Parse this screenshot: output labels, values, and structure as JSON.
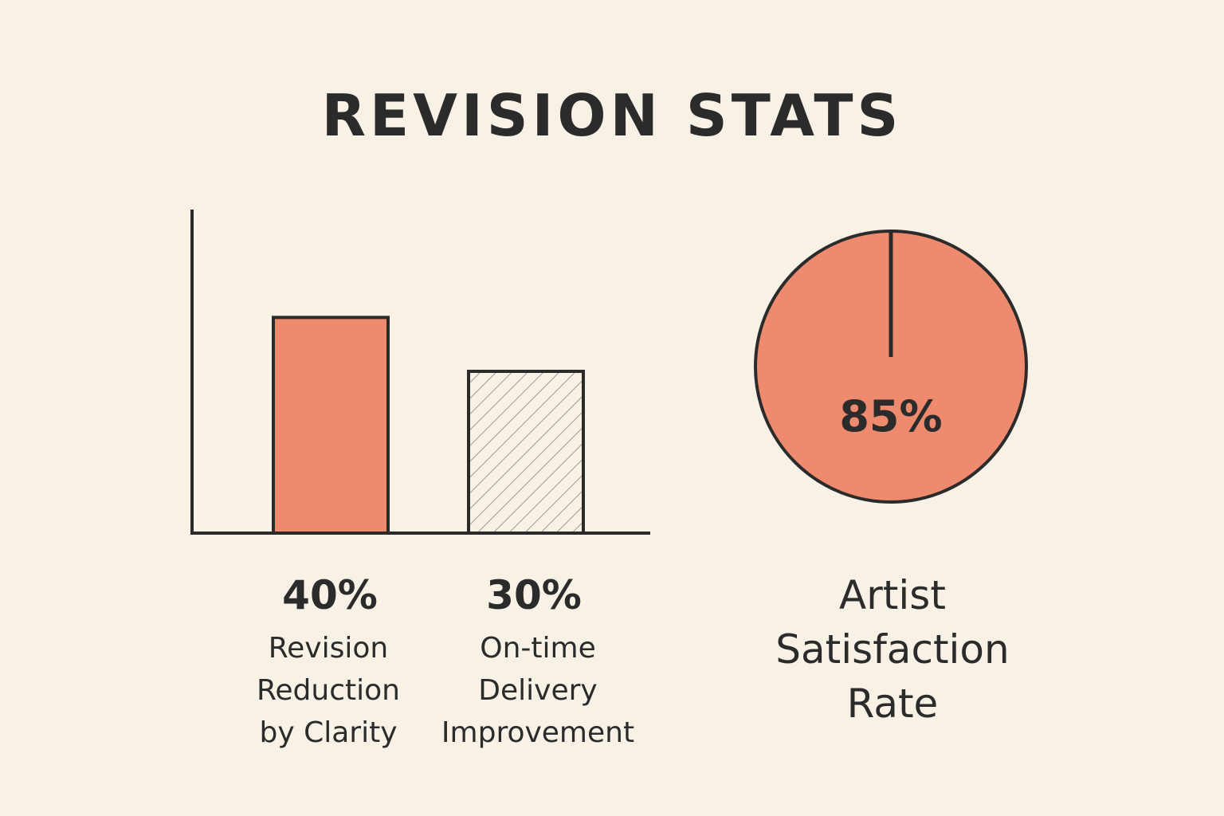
{
  "chart_data": [
    {
      "type": "bar",
      "title": "REVISION STATS",
      "categories": [
        "Revision\nReduction\nby Clarity",
        "On-time\nDelivery\nImprovement"
      ],
      "value_labels": [
        "40%",
        "30%"
      ],
      "values": [
        40,
        30
      ],
      "ylim": [
        0,
        60
      ],
      "grid": false,
      "bar_styles": [
        "solid",
        "hatched"
      ],
      "colors": {
        "bar_fill": "#ee8a6d",
        "outline": "#2b2b2b",
        "hatch": "#a09a92"
      }
    },
    {
      "type": "pie",
      "value": 85,
      "value_label": "85%",
      "caption": "Artist\nSatisfaction\nRate",
      "colors": {
        "fill": "#ee8a6d",
        "outline": "#2b2b2b"
      }
    }
  ]
}
